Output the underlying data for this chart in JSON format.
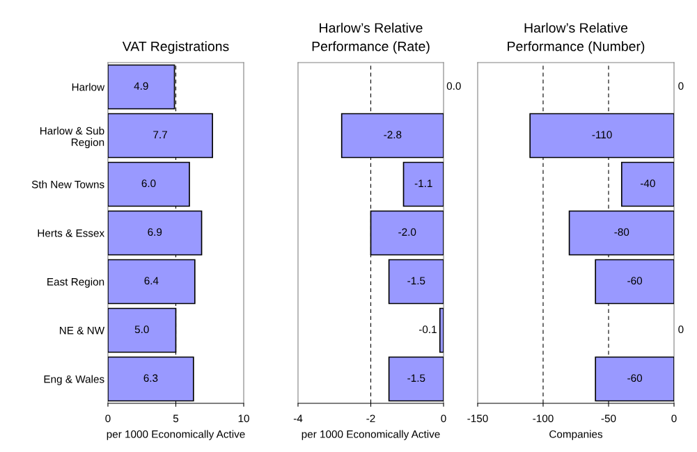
{
  "chart_data": [
    {
      "type": "bar",
      "orientation": "horizontal",
      "title": "VAT Registrations",
      "xlabel": "per 1000 Economically Active",
      "categories": [
        "Harlow",
        "Harlow & Sub\nRegion",
        "Sth New Towns",
        "Herts & Essex",
        "East Region",
        "NE & NW",
        "Eng & Wales"
      ],
      "values": [
        4.9,
        7.7,
        6.0,
        6.9,
        6.4,
        5.0,
        6.3
      ],
      "value_labels": [
        "4.9",
        "7.7",
        "6.0",
        "6.9",
        "6.4",
        "5.0",
        "6.3"
      ],
      "color": "#9999ff",
      "xlim": [
        0,
        10
      ],
      "xticks": [
        0,
        5,
        10
      ],
      "grid": "x"
    },
    {
      "type": "bar",
      "orientation": "horizontal",
      "title": "Harlow’s Relative\nPerformance (Rate)",
      "xlabel": "per 1000 Economically Active",
      "categories": [
        null,
        null,
        null,
        null,
        null,
        null,
        null
      ],
      "values": [
        0.0,
        -2.8,
        -1.1,
        -2.0,
        -1.5,
        -0.1,
        -1.5
      ],
      "value_labels": [
        "0.0",
        "-2.8",
        "-1.1",
        "-2.0",
        "-1.5",
        "-0.1",
        "-1.5"
      ],
      "color": "#9999ff",
      "xlim": [
        -4,
        0
      ],
      "xticks": [
        -4,
        -2,
        0
      ],
      "grid": "x"
    },
    {
      "type": "bar",
      "orientation": "horizontal",
      "title": "Harlow’s Relative\nPerformance (Number)",
      "xlabel": "Companies",
      "categories": [
        null,
        null,
        null,
        null,
        null,
        null,
        null
      ],
      "values": [
        0,
        -110,
        -40,
        -80,
        -60,
        0,
        -60
      ],
      "value_labels": [
        "0",
        "-110",
        "-40",
        "-80",
        "-60",
        "0",
        "-60"
      ],
      "color": "#9999ff",
      "xlim": [
        -150,
        0
      ],
      "xticks": [
        -150,
        -100,
        -50,
        0
      ],
      "grid": "x"
    }
  ]
}
